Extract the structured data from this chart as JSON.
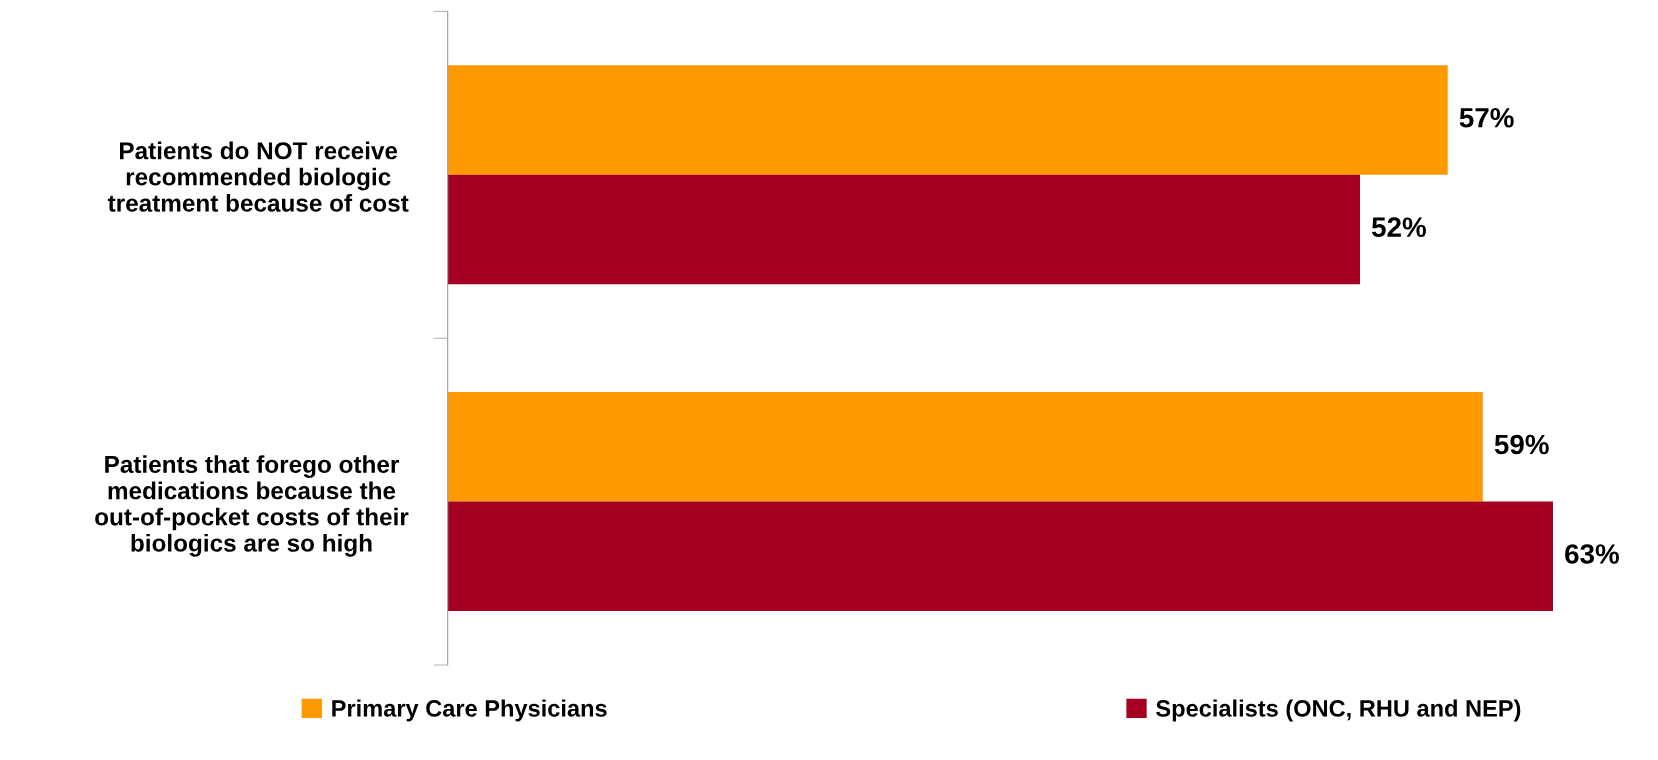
{
  "chart_data": {
    "type": "bar",
    "orientation": "horizontal",
    "categories": [
      "Patients do NOT receive\nrecommended biologic\ntreatment because of cost",
      "Patients that forego other\nmedications because the\nout-of-pocket costs of their\nbiologics are so high"
    ],
    "series": [
      {
        "name": "Primary Care Physicians",
        "color": "#ff9900",
        "values": [
          57,
          59
        ],
        "value_labels": [
          "57%",
          "59%"
        ]
      },
      {
        "name": "Specialists (ONC, RHU and NEP)",
        "color": "#a50021",
        "values": [
          52,
          63
        ],
        "value_labels": [
          "52%",
          "63%"
        ]
      }
    ],
    "tick_labels": "y",
    "grid": false,
    "legend": "bottom"
  }
}
